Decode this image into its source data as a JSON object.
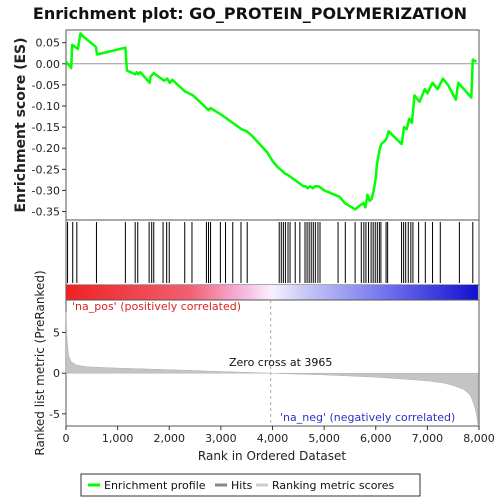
{
  "chart_data": [
    {
      "type": "line",
      "title": "Enrichment plot: GO_PROTEIN_POLYMERIZATION",
      "ylabel": "Enrichment score (ES)",
      "ylim": [
        -0.37,
        0.08
      ],
      "yticks": [
        0.05,
        0.0,
        -0.05,
        -0.1,
        -0.15,
        -0.2,
        -0.25,
        -0.3,
        -0.35
      ],
      "ytick_labels": [
        "0.05",
        "0.00",
        "-0.05",
        "-0.10",
        "-0.15",
        "-0.20",
        "-0.25",
        "-0.30",
        "-0.35"
      ],
      "xlim": [
        0,
        8000
      ],
      "grid": false,
      "series": [
        {
          "name": "Enrichment profile",
          "color": "#00ff00",
          "x": [
            0,
            100,
            120,
            230,
            280,
            330,
            380,
            430,
            480,
            530,
            580,
            600,
            1150,
            1180,
            1340,
            1370,
            1400,
            1440,
            1620,
            1640,
            1680,
            1700,
            1900,
            1960,
            2010,
            2060,
            2300,
            2460,
            2720,
            2760,
            2800,
            3000,
            3230,
            3400,
            3500,
            3600,
            3900,
            4000,
            4100,
            4150,
            4200,
            4240,
            4280,
            4320,
            4600,
            4640,
            4680,
            4730,
            4780,
            4830,
            4880,
            4920,
            5000,
            5300,
            5400,
            5600,
            5700,
            5760,
            5800,
            5840,
            5880,
            5920,
            5960,
            6000,
            6020,
            6050,
            6080,
            6110,
            6200,
            6250,
            6500,
            6550,
            6600,
            6650,
            6700,
            6750,
            6850,
            6950,
            7000,
            7100,
            7200,
            7300,
            7400,
            7550,
            7600,
            7850,
            7880,
            7950
          ],
          "values": [
            0.005,
            -0.01,
            0.045,
            0.035,
            0.072,
            0.065,
            0.06,
            0.055,
            0.05,
            0.045,
            0.04,
            0.022,
            0.038,
            -0.016,
            -0.025,
            -0.02,
            -0.025,
            -0.02,
            -0.045,
            -0.03,
            -0.025,
            -0.022,
            -0.04,
            -0.035,
            -0.045,
            -0.038,
            -0.065,
            -0.075,
            -0.105,
            -0.11,
            -0.105,
            -0.12,
            -0.14,
            -0.155,
            -0.16,
            -0.17,
            -0.21,
            -0.23,
            -0.245,
            -0.25,
            -0.255,
            -0.26,
            -0.262,
            -0.265,
            -0.29,
            -0.29,
            -0.295,
            -0.29,
            -0.295,
            -0.29,
            -0.29,
            -0.292,
            -0.3,
            -0.315,
            -0.33,
            -0.345,
            -0.335,
            -0.33,
            -0.34,
            -0.31,
            -0.325,
            -0.32,
            -0.3,
            -0.27,
            -0.24,
            -0.22,
            -0.2,
            -0.19,
            -0.18,
            -0.16,
            -0.19,
            -0.15,
            -0.155,
            -0.13,
            -0.14,
            -0.075,
            -0.09,
            -0.06,
            -0.07,
            -0.045,
            -0.06,
            -0.035,
            -0.05,
            -0.085,
            -0.045,
            -0.08,
            0.01,
            0.005
          ]
        }
      ]
    },
    {
      "type": "heatmap",
      "xlim": [
        0,
        8000
      ],
      "hits": [
        30,
        130,
        210,
        590,
        1150,
        1340,
        1390,
        1610,
        1660,
        1700,
        1880,
        1950,
        2000,
        2300,
        2440,
        2720,
        2760,
        2800,
        2990,
        3090,
        3230,
        3390,
        3510,
        4130,
        4170,
        4210,
        4250,
        4300,
        4340,
        4440,
        4530,
        4630,
        4670,
        4710,
        4750,
        4790,
        4830,
        4880,
        4920,
        5270,
        5410,
        5600,
        5720,
        5770,
        5810,
        5860,
        5910,
        5950,
        5990,
        6030,
        6070,
        6100,
        6200,
        6230,
        6500,
        6540,
        6580,
        6630,
        6680,
        6720,
        6830,
        6960,
        7100,
        7250,
        7620,
        7880
      ]
    },
    {
      "type": "area",
      "ylabel": "Ranked list metric (PreRanked)",
      "xlabel": "Rank in Ordered Dataset",
      "ylim": [
        -6.5,
        9
      ],
      "yticks": [
        5,
        0,
        -5
      ],
      "ytick_labels": [
        "5",
        "0",
        "-5"
      ],
      "xlim": [
        0,
        8000
      ],
      "xticks": [
        0,
        1000,
        2000,
        3000,
        4000,
        5000,
        6000,
        7000,
        8000
      ],
      "xtick_labels": [
        "0",
        "1,000",
        "2,000",
        "3,000",
        "4,000",
        "5,000",
        "6,000",
        "7,000",
        "8,000"
      ],
      "x": [
        0,
        20,
        50,
        100,
        200,
        400,
        700,
        1000,
        1500,
        2000,
        2500,
        3000,
        3500,
        3965,
        4500,
        5000,
        5500,
        6000,
        6500,
        7000,
        7300,
        7500,
        7700,
        7800,
        7850,
        7900,
        7950,
        7980
      ],
      "values": [
        7.5,
        4.2,
        2.2,
        1.4,
        1.0,
        0.8,
        0.7,
        0.62,
        0.52,
        0.42,
        0.32,
        0.2,
        0.1,
        0.0,
        -0.12,
        -0.22,
        -0.35,
        -0.5,
        -0.7,
        -0.95,
        -1.2,
        -1.5,
        -2.0,
        -2.5,
        -3.0,
        -3.8,
        -5.0,
        -6.3
      ],
      "annotations": {
        "pos_label": "'na_pos' (positively correlated)",
        "neg_label": "'na_neg' (negatively correlated)",
        "zero_cross": "Zero cross at 3965",
        "zero_cross_rank": 3965
      }
    }
  ],
  "legend": {
    "items": [
      {
        "label": "Enrichment profile",
        "color": "#00ff00"
      },
      {
        "label": "Hits",
        "color": "#888888"
      },
      {
        "label": "Ranking metric scores",
        "color": "#cccccc"
      }
    ]
  }
}
